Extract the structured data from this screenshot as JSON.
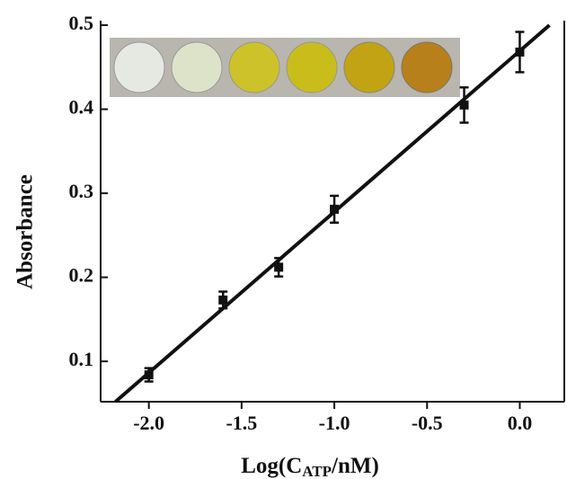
{
  "chart_data": {
    "type": "scatter",
    "x_label": {
      "main": "Log(C",
      "sub": "ATP",
      "tail": "/nM)"
    },
    "y_label": "Absorbance",
    "x": [
      -2.0,
      -1.6,
      -1.3,
      -1.0,
      -0.3,
      0.0
    ],
    "values": [
      0.084,
      0.173,
      0.212,
      0.281,
      0.405,
      0.468
    ],
    "errors": [
      0.008,
      0.01,
      0.011,
      0.016,
      0.021,
      0.024
    ],
    "fit_line": {
      "x": [
        -2.18,
        0.16
      ],
      "values": [
        0.052,
        0.5
      ]
    },
    "color": "#111111",
    "xlim": [
      -2.26,
      0.24
    ],
    "ylim": [
      0.052,
      0.5
    ],
    "xticks": [
      {
        "value": -2.0,
        "label": "-2.0"
      },
      {
        "value": -1.5,
        "label": "-1.5"
      },
      {
        "value": -1.0,
        "label": "-1.0"
      },
      {
        "value": -0.5,
        "label": "-0.5"
      },
      {
        "value": 0.0,
        "label": "0.0"
      }
    ],
    "yticks": [
      0.1,
      0.2,
      0.3,
      0.4,
      0.5
    ]
  }
}
